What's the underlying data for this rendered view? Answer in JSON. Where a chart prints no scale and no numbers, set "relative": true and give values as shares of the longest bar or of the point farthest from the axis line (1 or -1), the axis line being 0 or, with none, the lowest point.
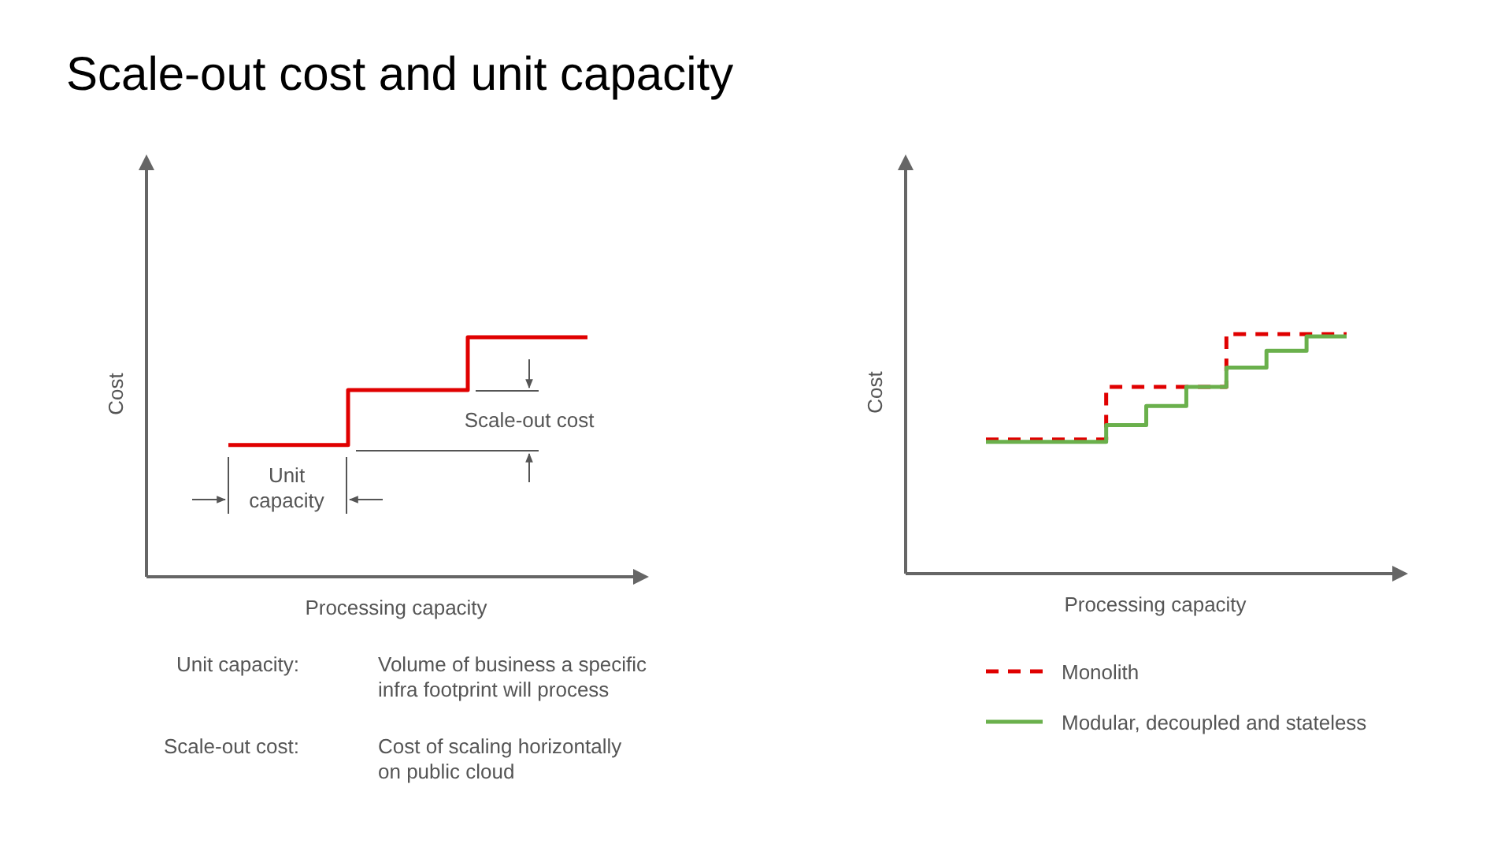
{
  "chart_data": [
    {
      "type": "step",
      "title": "Scale-out cost and unit capacity",
      "xlabel": "Processing capacity",
      "ylabel": "Cost",
      "relative": true,
      "categories": [
        null,
        null,
        null,
        null
      ],
      "series": [
        {
          "color": "#e00000",
          "values": [
            0.55,
            0.78,
            1,
            1
          ]
        }
      ],
      "annotations": [
        "Unit capacity",
        "Scale-out cost",
        "Unit capacity:",
        "Volume of business a specific infra footprint will process",
        "Scale-out cost:",
        "Cost of scaling horizontally on public cloud"
      ]
    },
    {
      "type": "step",
      "xlabel": "Processing capacity",
      "ylabel": "Cost",
      "relative": true,
      "legend": "bottom",
      "categories": [
        null,
        null,
        null,
        null,
        null,
        null,
        null,
        null,
        null,
        null
      ],
      "series": [
        {
          "name": "Monolith",
          "color": "#e00000",
          "line_style": "dashed",
          "values": [
            0.56,
            0.56,
            0.56,
            0.78,
            0.78,
            0.78,
            1,
            1,
            1,
            1
          ]
        },
        {
          "name": "Modular, decoupled and stateless",
          "color": "#6ab04c",
          "line_style": "solid",
          "values": [
            0.55,
            0.55,
            0.55,
            0.62,
            0.7,
            0.78,
            0.86,
            0.93,
            0.99,
            0.99
          ]
        }
      ]
    }
  ]
}
